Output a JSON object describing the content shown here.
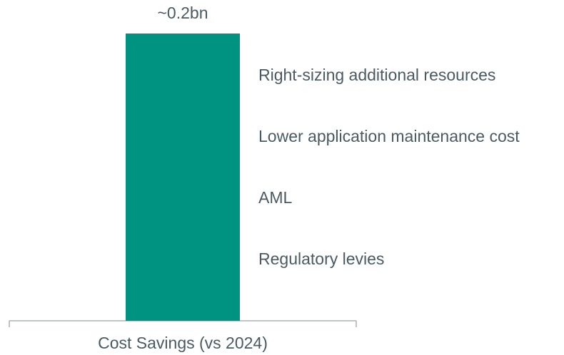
{
  "chart_data": {
    "type": "bar",
    "categories": [
      "Cost Savings (vs 2024)"
    ],
    "values": [
      0.2
    ],
    "value_labels": [
      "~0.2bn"
    ],
    "color": "#009382",
    "annotations": [
      "Right-sizing additional resources",
      "Lower application maintenance cost",
      "AML",
      "Regulatory levies"
    ]
  }
}
